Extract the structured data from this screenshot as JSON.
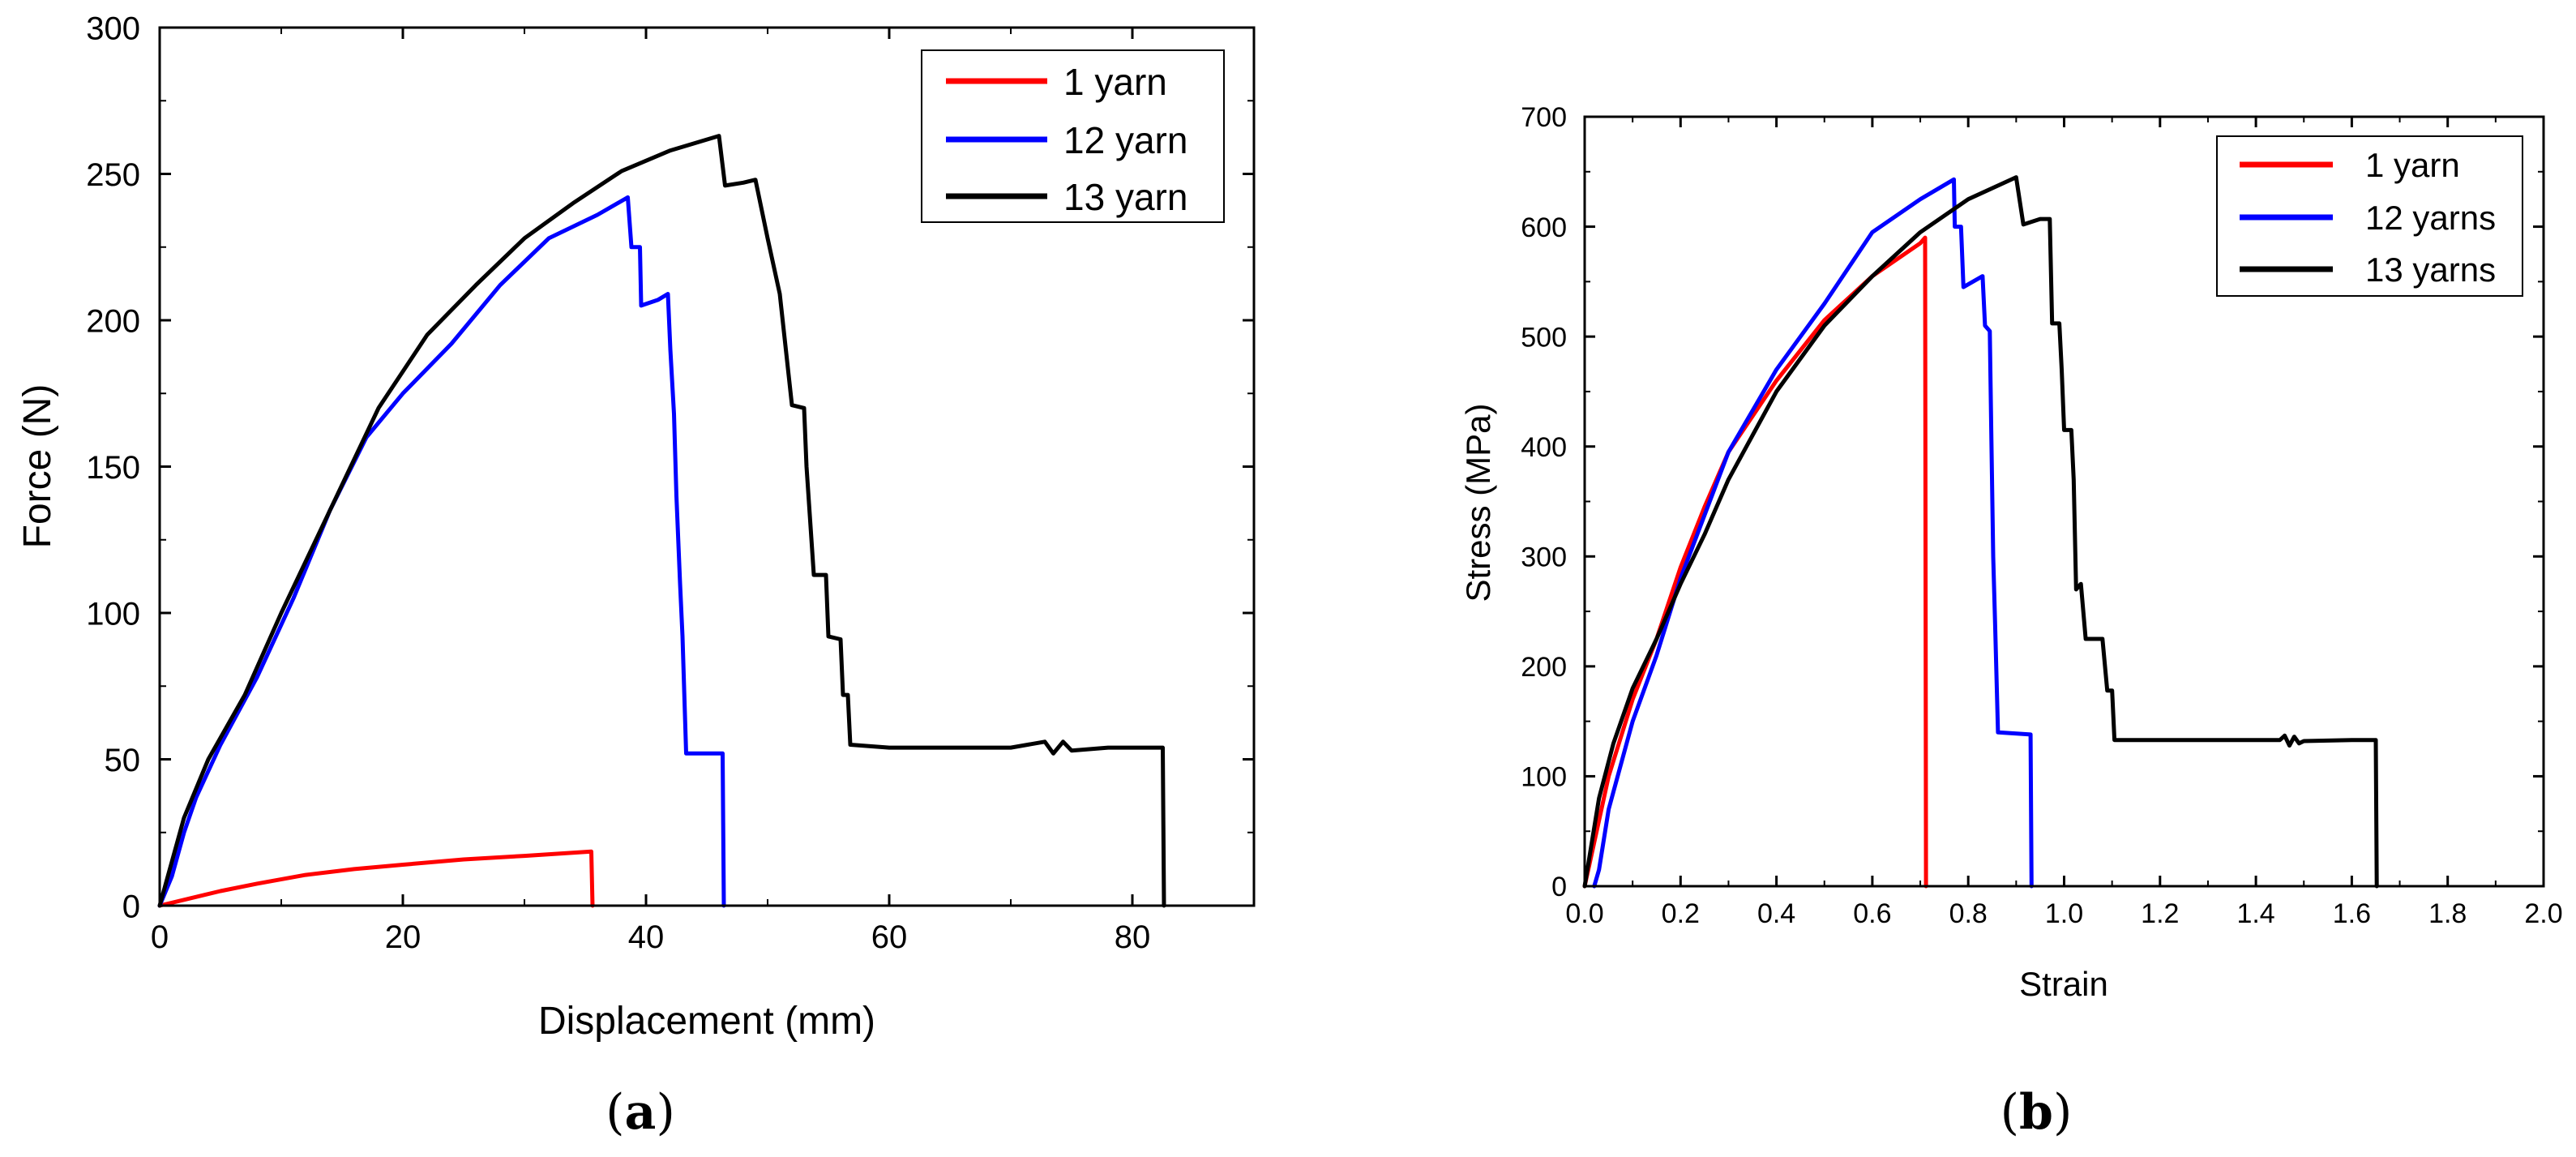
{
  "chart_data": [
    {
      "type": "line",
      "panel_label": "a",
      "xlabel": "Displacement (mm)",
      "ylabel": "Force (N)",
      "xlim": [
        0,
        90
      ],
      "ylim": [
        0,
        300
      ],
      "xticks": [
        0,
        20,
        40,
        60,
        80
      ],
      "yticks": [
        0,
        50,
        100,
        150,
        200,
        250,
        300
      ],
      "legend_position": "top-right",
      "series": [
        {
          "name": "1 yarn",
          "color": "#ff0000",
          "points": [
            [
              0,
              0
            ],
            [
              2,
              2
            ],
            [
              5,
              5
            ],
            [
              8,
              7.5
            ],
            [
              12,
              10.5
            ],
            [
              16,
              12.5
            ],
            [
              20,
              14
            ],
            [
              25,
              15.8
            ],
            [
              30,
              17
            ],
            [
              35.5,
              18.5
            ],
            [
              35.6,
              0
            ]
          ]
        },
        {
          "name": "12 yarn",
          "color": "#0000ff",
          "points": [
            [
              0,
              0
            ],
            [
              1,
              10
            ],
            [
              2,
              25
            ],
            [
              3,
              37
            ],
            [
              5,
              55
            ],
            [
              8,
              78
            ],
            [
              11,
              105
            ],
            [
              14,
              135
            ],
            [
              17,
              160
            ],
            [
              20,
              175
            ],
            [
              24,
              192
            ],
            [
              28,
              212
            ],
            [
              32,
              228
            ],
            [
              36,
              236
            ],
            [
              38.5,
              242
            ],
            [
              38.8,
              225
            ],
            [
              39.5,
              225
            ],
            [
              39.6,
              205
            ],
            [
              41,
              207
            ],
            [
              41.8,
              209
            ],
            [
              42,
              190
            ],
            [
              42.3,
              168
            ],
            [
              42.5,
              140
            ],
            [
              42.8,
              110
            ],
            [
              43,
              92
            ],
            [
              43.3,
              52
            ],
            [
              46.3,
              52
            ],
            [
              46.4,
              0
            ]
          ]
        },
        {
          "name": "13 yarn",
          "color": "#000000",
          "points": [
            [
              0,
              0
            ],
            [
              2,
              30
            ],
            [
              4,
              50
            ],
            [
              7,
              72
            ],
            [
              10,
              100
            ],
            [
              14,
              135
            ],
            [
              18,
              170
            ],
            [
              22,
              195
            ],
            [
              26,
              212
            ],
            [
              30,
              228
            ],
            [
              34,
              240
            ],
            [
              38,
              251
            ],
            [
              42,
              258
            ],
            [
              46,
              263
            ],
            [
              46.5,
              246
            ],
            [
              48,
              247
            ],
            [
              49,
              248
            ],
            [
              50,
              228
            ],
            [
              51,
              209
            ],
            [
              51.5,
              190
            ],
            [
              52,
              171
            ],
            [
              53,
              170
            ],
            [
              53.2,
              150
            ],
            [
              53.8,
              113
            ],
            [
              54.8,
              113
            ],
            [
              55,
              92
            ],
            [
              56,
              91
            ],
            [
              56.2,
              72
            ],
            [
              56.6,
              72
            ],
            [
              56.8,
              55
            ],
            [
              60,
              54
            ],
            [
              65,
              54
            ],
            [
              70,
              54
            ],
            [
              72.8,
              56
            ],
            [
              73.5,
              52
            ],
            [
              74.3,
              56
            ],
            [
              75,
              53
            ],
            [
              78,
              54
            ],
            [
              82.5,
              54
            ],
            [
              82.6,
              0
            ]
          ]
        }
      ]
    },
    {
      "type": "line",
      "panel_label": "b",
      "xlabel": "Strain",
      "ylabel": "Stress (MPa)",
      "xlim": [
        0,
        2.0
      ],
      "ylim": [
        0,
        700
      ],
      "xticks": [
        0.0,
        0.2,
        0.4,
        0.6,
        0.8,
        1.0,
        1.2,
        1.4,
        1.6,
        1.8,
        2.0
      ],
      "yticks": [
        0,
        100,
        200,
        300,
        400,
        500,
        600,
        700
      ],
      "legend_position": "top-right",
      "series": [
        {
          "name": "1 yarn",
          "color": "#ff0000",
          "points": [
            [
              0,
              0
            ],
            [
              0.05,
              100
            ],
            [
              0.1,
              170
            ],
            [
              0.15,
              225
            ],
            [
              0.2,
              290
            ],
            [
              0.25,
              345
            ],
            [
              0.3,
              395
            ],
            [
              0.4,
              460
            ],
            [
              0.5,
              515
            ],
            [
              0.6,
              555
            ],
            [
              0.7,
              585
            ],
            [
              0.71,
              590
            ],
            [
              0.712,
              0
            ]
          ]
        },
        {
          "name": "12 yarns",
          "color": "#0000ff",
          "points": [
            [
              0.02,
              0
            ],
            [
              0.03,
              15
            ],
            [
              0.05,
              70
            ],
            [
              0.1,
              150
            ],
            [
              0.15,
              210
            ],
            [
              0.2,
              280
            ],
            [
              0.3,
              395
            ],
            [
              0.4,
              470
            ],
            [
              0.5,
              530
            ],
            [
              0.6,
              595
            ],
            [
              0.7,
              625
            ],
            [
              0.77,
              643
            ],
            [
              0.772,
              600
            ],
            [
              0.785,
              600
            ],
            [
              0.79,
              545
            ],
            [
              0.83,
              555
            ],
            [
              0.835,
              510
            ],
            [
              0.845,
              505
            ],
            [
              0.848,
              415
            ],
            [
              0.852,
              300
            ],
            [
              0.856,
              240
            ],
            [
              0.862,
              140
            ],
            [
              0.93,
              138
            ],
            [
              0.932,
              0
            ]
          ]
        },
        {
          "name": "13 yarns",
          "color": "#000000",
          "points": [
            [
              0,
              0
            ],
            [
              0.03,
              80
            ],
            [
              0.06,
              130
            ],
            [
              0.1,
              180
            ],
            [
              0.15,
              225
            ],
            [
              0.2,
              275
            ],
            [
              0.25,
              320
            ],
            [
              0.3,
              370
            ],
            [
              0.4,
              450
            ],
            [
              0.5,
              510
            ],
            [
              0.6,
              555
            ],
            [
              0.7,
              595
            ],
            [
              0.8,
              625
            ],
            [
              0.9,
              645
            ],
            [
              0.915,
              602
            ],
            [
              0.95,
              607
            ],
            [
              0.97,
              607
            ],
            [
              0.975,
              512
            ],
            [
              0.99,
              512
            ],
            [
              0.995,
              470
            ],
            [
              1.0,
              415
            ],
            [
              1.015,
              415
            ],
            [
              1.02,
              370
            ],
            [
              1.025,
              270
            ],
            [
              1.035,
              275
            ],
            [
              1.045,
              225
            ],
            [
              1.08,
              225
            ],
            [
              1.09,
              178
            ],
            [
              1.1,
              178
            ],
            [
              1.105,
              133
            ],
            [
              1.2,
              133
            ],
            [
              1.3,
              133
            ],
            [
              1.45,
              133
            ],
            [
              1.46,
              137
            ],
            [
              1.47,
              128
            ],
            [
              1.48,
              136
            ],
            [
              1.49,
              130
            ],
            [
              1.5,
              132
            ],
            [
              1.6,
              133
            ],
            [
              1.65,
              133
            ],
            [
              1.652,
              0
            ]
          ]
        }
      ]
    }
  ]
}
